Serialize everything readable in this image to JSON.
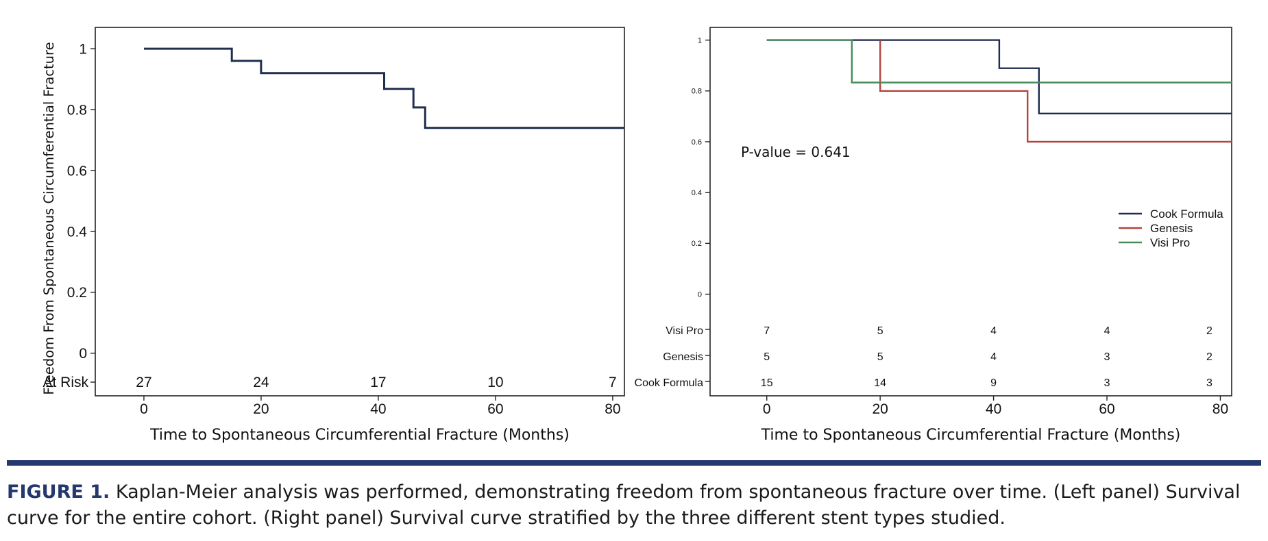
{
  "chart_data": [
    {
      "type": "line",
      "step": true,
      "ylabel": "Freedom From Spontaneous Circumferential Fracture",
      "xlabel": "Time to Spontaneous Circumferential Fracture (Months)",
      "xlim": [
        -8.3,
        82
      ],
      "ylim": [
        -0.14,
        1.07
      ],
      "x_ticks": [
        "0",
        "20",
        "40",
        "60",
        "80"
      ],
      "y_ticks": [
        "0",
        "0.2",
        "0.4",
        "0.6",
        "0.8",
        "1"
      ],
      "series": [
        {
          "color": "#1f2d4f",
          "points": [
            [
              0,
              1
            ],
            [
              15,
              1
            ],
            [
              15,
              0.96
            ],
            [
              20,
              0.96
            ],
            [
              20,
              0.92
            ],
            [
              41,
              0.92
            ],
            [
              41,
              0.868
            ],
            [
              46,
              0.868
            ],
            [
              46,
              0.807
            ],
            [
              48,
              0.807
            ],
            [
              48,
              0.74
            ],
            [
              82,
              0.74
            ]
          ]
        }
      ],
      "risk_table": [
        {
          "label": "At Risk",
          "values": [
            "27",
            "24",
            "17",
            "10",
            "7"
          ]
        }
      ]
    },
    {
      "type": "line",
      "step": true,
      "xlabel": "Time to Spontaneous Circumferential Fracture (Months)",
      "xlim": [
        -10,
        82
      ],
      "ylim": [
        -0.4,
        1.05
      ],
      "x_ticks": [
        "0",
        "20",
        "40",
        "60",
        "80"
      ],
      "y_ticks": [
        "0",
        "0.2",
        "0.4",
        "0.6",
        "0.8",
        "1"
      ],
      "annotation": "P-value = 0.641",
      "legend_position": "right",
      "series": [
        {
          "name": "Cook Formula",
          "color": "#1f2d4f",
          "points": [
            [
              0,
              1
            ],
            [
              41,
              1
            ],
            [
              41,
              0.889
            ],
            [
              48,
              0.889
            ],
            [
              48,
              0.711
            ],
            [
              82,
              0.711
            ]
          ]
        },
        {
          "name": "Genesis",
          "color": "#b5443f",
          "points": [
            [
              20,
              1
            ],
            [
              20,
              0.8
            ],
            [
              46,
              0.8
            ],
            [
              46,
              0.6
            ],
            [
              82,
              0.6
            ]
          ]
        },
        {
          "name": "Visi Pro",
          "color": "#4a8c5c",
          "points": [
            [
              0,
              1
            ],
            [
              15,
              1
            ],
            [
              15,
              0.833
            ],
            [
              82,
              0.833
            ]
          ]
        }
      ],
      "risk_table": [
        {
          "label": "Visi Pro",
          "values": [
            "7",
            "5",
            "4",
            "4",
            "2"
          ]
        },
        {
          "label": "Genesis",
          "values": [
            "5",
            "5",
            "4",
            "3",
            "2"
          ]
        },
        {
          "label": "Cook Formula",
          "values": [
            "15",
            "14",
            "9",
            "3",
            "3"
          ]
        }
      ]
    }
  ],
  "caption": {
    "label": "FIGURE 1.",
    "text": " Kaplan-Meier analysis was performed, demonstrating freedom from spontaneous fracture over time. (Left panel) Survival curve for the entire cohort. (Right panel) Survival curve stratified by the three different stent types studied."
  }
}
